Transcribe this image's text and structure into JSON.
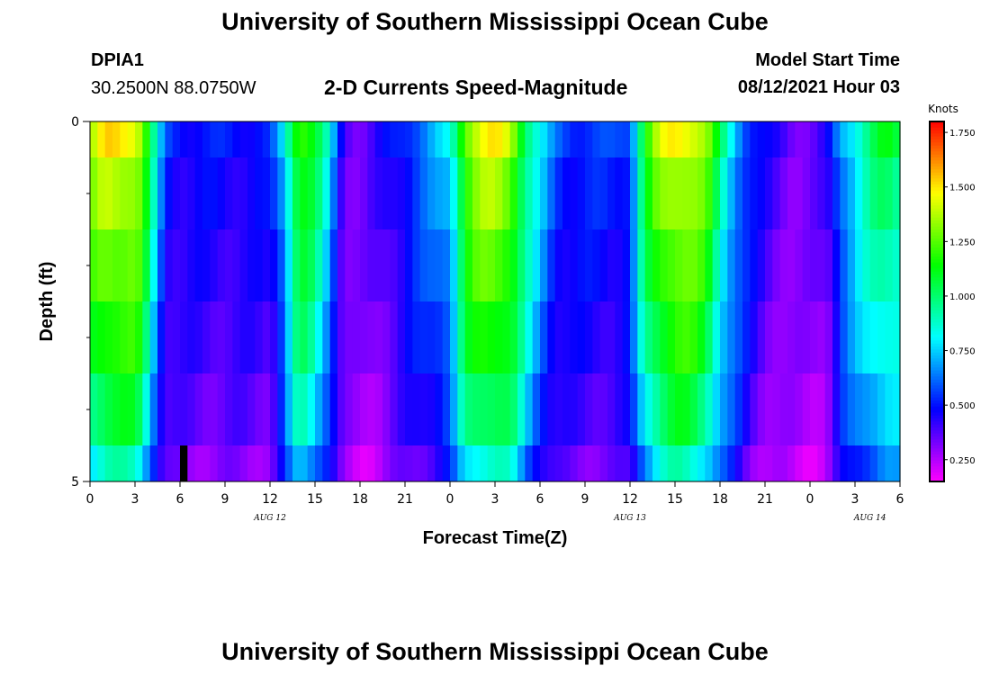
{
  "header": {
    "title": "University of Southern Mississippi Ocean Cube",
    "station_id": "DPIA1",
    "coords": "30.2500N  88.0750W",
    "chart_title": "2-D Currents Speed-Magnitude",
    "model_label": "Model Start Time",
    "model_time": "08/12/2021 Hour 03"
  },
  "footer": {
    "title": "University of Southern Mississippi Ocean Cube"
  },
  "chart_data": {
    "type": "heatmap",
    "title": "2-D Currents Speed-Magnitude",
    "xlabel": "Forecast Time(Z)",
    "ylabel": "Depth (ft)",
    "units": "Knots",
    "x_ticks": [
      "0",
      "3",
      "6",
      "9",
      "12",
      "15",
      "18",
      "21",
      "0",
      "3",
      "6",
      "9",
      "12",
      "15",
      "18",
      "21",
      "0",
      "3",
      "6"
    ],
    "date_labels": [
      {
        "label": "AUG 12",
        "hour": 12
      },
      {
        "label": "AUG 13",
        "hour": 36
      },
      {
        "label": "AUG 14",
        "hour": 52
      }
    ],
    "y_ticks": [
      "0",
      "5"
    ],
    "ylim": [
      0,
      5
    ],
    "xlim_hours": [
      0,
      54
    ],
    "depth_levels": [
      0,
      0.5,
      1.5,
      2.5,
      3.5,
      4.5
    ],
    "depth_edges": [
      0,
      0.5,
      1.5,
      2.5,
      3.5,
      4.5,
      5
    ],
    "colorbar": {
      "range": [
        0.15,
        1.8
      ],
      "ticks": [
        "1.750",
        "1.500",
        "1.250",
        "1.000",
        "0.750",
        "0.500",
        "0.250"
      ],
      "tick_values": [
        1.75,
        1.5,
        1.25,
        1.0,
        0.75,
        0.5,
        0.25
      ]
    },
    "profile_hours": [
      0,
      1,
      2,
      3,
      3.5,
      4,
      4.5,
      5,
      6,
      7,
      8,
      9,
      10,
      11,
      12,
      13,
      13.5,
      14,
      14.5,
      15,
      16,
      16.5,
      17,
      18,
      19,
      21,
      23,
      24,
      24.5,
      25,
      26,
      27,
      28,
      28.5,
      29,
      30,
      31,
      32,
      33,
      35,
      36,
      36.5,
      37,
      38,
      39,
      40,
      41,
      41.5,
      42,
      43,
      44,
      45,
      47,
      48,
      49,
      49.5,
      50,
      51,
      52,
      53,
      54
    ],
    "profile_values": [
      1.35,
      1.5,
      1.5,
      1.48,
      1.35,
      1.05,
      0.8,
      0.55,
      0.5,
      0.5,
      0.5,
      0.5,
      0.5,
      0.5,
      0.5,
      0.8,
      1.1,
      1.25,
      1.2,
      1.1,
      0.8,
      0.55,
      0.4,
      0.35,
      0.4,
      0.55,
      0.7,
      0.8,
      1.05,
      1.3,
      1.45,
      1.48,
      1.4,
      1.25,
      1.05,
      0.8,
      0.6,
      0.55,
      0.55,
      0.55,
      0.6,
      0.9,
      1.15,
      1.4,
      1.5,
      1.48,
      1.35,
      1.2,
      1.0,
      0.75,
      0.55,
      0.45,
      0.35,
      0.35,
      0.4,
      0.5,
      0.7,
      0.85,
      1.0,
      1.1,
      1.05
    ],
    "depth_factors": [
      1.0,
      0.92,
      0.86,
      0.8,
      0.72,
      0.6
    ],
    "bottom_gap": {
      "hour_start": 6,
      "hour_end": 6.5
    }
  }
}
